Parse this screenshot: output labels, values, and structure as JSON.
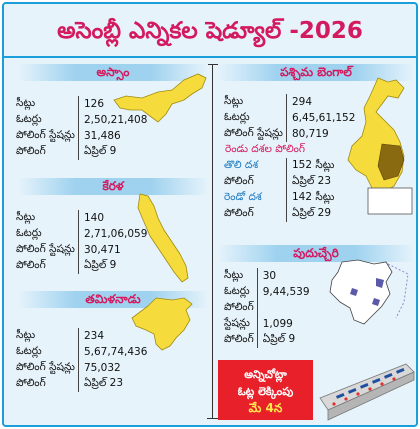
{
  "title": "అసెంబ్లీ ఎన్నికల షెడ్యూల్ -2026",
  "assam": {
    "name": "అస్సాం",
    "rows": [
      {
        "k": "సీట్లు",
        "v": "126"
      },
      {
        "k": "ఓటర్లు",
        "v": "2,50,21,408"
      },
      {
        "k": "పోలింగ్ స్టేషన్లు",
        "v": "31,486"
      },
      {
        "k": "పోలింగ్",
        "v": "ఏప్రిల్ 9"
      }
    ]
  },
  "kerala": {
    "name": "కేరళ",
    "rows": [
      {
        "k": "సీట్లు",
        "v": "140"
      },
      {
        "k": "ఓటర్లు",
        "v": "2,71,06,059"
      },
      {
        "k": "పోలింగ్ స్టేషన్లు",
        "v": "30,471"
      },
      {
        "k": "పోలింగ్",
        "v": "ఏప్రిల్ 9"
      }
    ]
  },
  "tamilnadu": {
    "name": "తమిళనాడు",
    "rows": [
      {
        "k": "సీట్లు",
        "v": "234"
      },
      {
        "k": "ఓటర్లు",
        "v": "5,67,74,436"
      },
      {
        "k": "పోలింగ్ స్టేషన్లు",
        "v": "75,032"
      },
      {
        "k": "పోలింగ్",
        "v": "ఏప్రిల్ 23"
      }
    ]
  },
  "westbengal": {
    "name": "పశ్చిమ బెంగాల్",
    "rows": [
      {
        "k": "సీట్లు",
        "v": "294"
      },
      {
        "k": "ఓటర్లు",
        "v": "6,45,61,152"
      },
      {
        "k": "పోలింగ్ స్టేషన్లు",
        "v": "80,719"
      }
    ],
    "two_phase": "రెండు దశల పోలింగ్",
    "phase1": {
      "name": "తొలి దశ",
      "seats": "152 సీట్లు",
      "polling_label": "పోలింగ్",
      "date": "ఏప్రిల్ 23"
    },
    "phase2": {
      "name": "రెండో దశ",
      "seats": "142 సీట్లు",
      "polling_label": "పోలింగ్",
      "date": "ఏప్రిల్ 29"
    }
  },
  "puducherry": {
    "name": "పుదుచ్చేరి",
    "rows": [
      {
        "k": "సీట్లు",
        "v": "30"
      },
      {
        "k": "ఓటర్లు",
        "v": "9,44,539"
      },
      {
        "k": "పోలింగ్",
        "v": ""
      },
      {
        "k": "స్టేషన్లు",
        "v": "1,099"
      },
      {
        "k": "పోలింగ్",
        "v": "ఏప్రిల్ 9"
      }
    ]
  },
  "result": {
    "line1": "అన్నిచోట్లా",
    "line2": "ఓట్ల లెక్కింపు",
    "date": "మే 4న"
  },
  "colors": {
    "title": "#d41a5f",
    "map_yellow": "#f5dc3c",
    "border": "#1a9fdb",
    "result_red": "#e8202a"
  }
}
